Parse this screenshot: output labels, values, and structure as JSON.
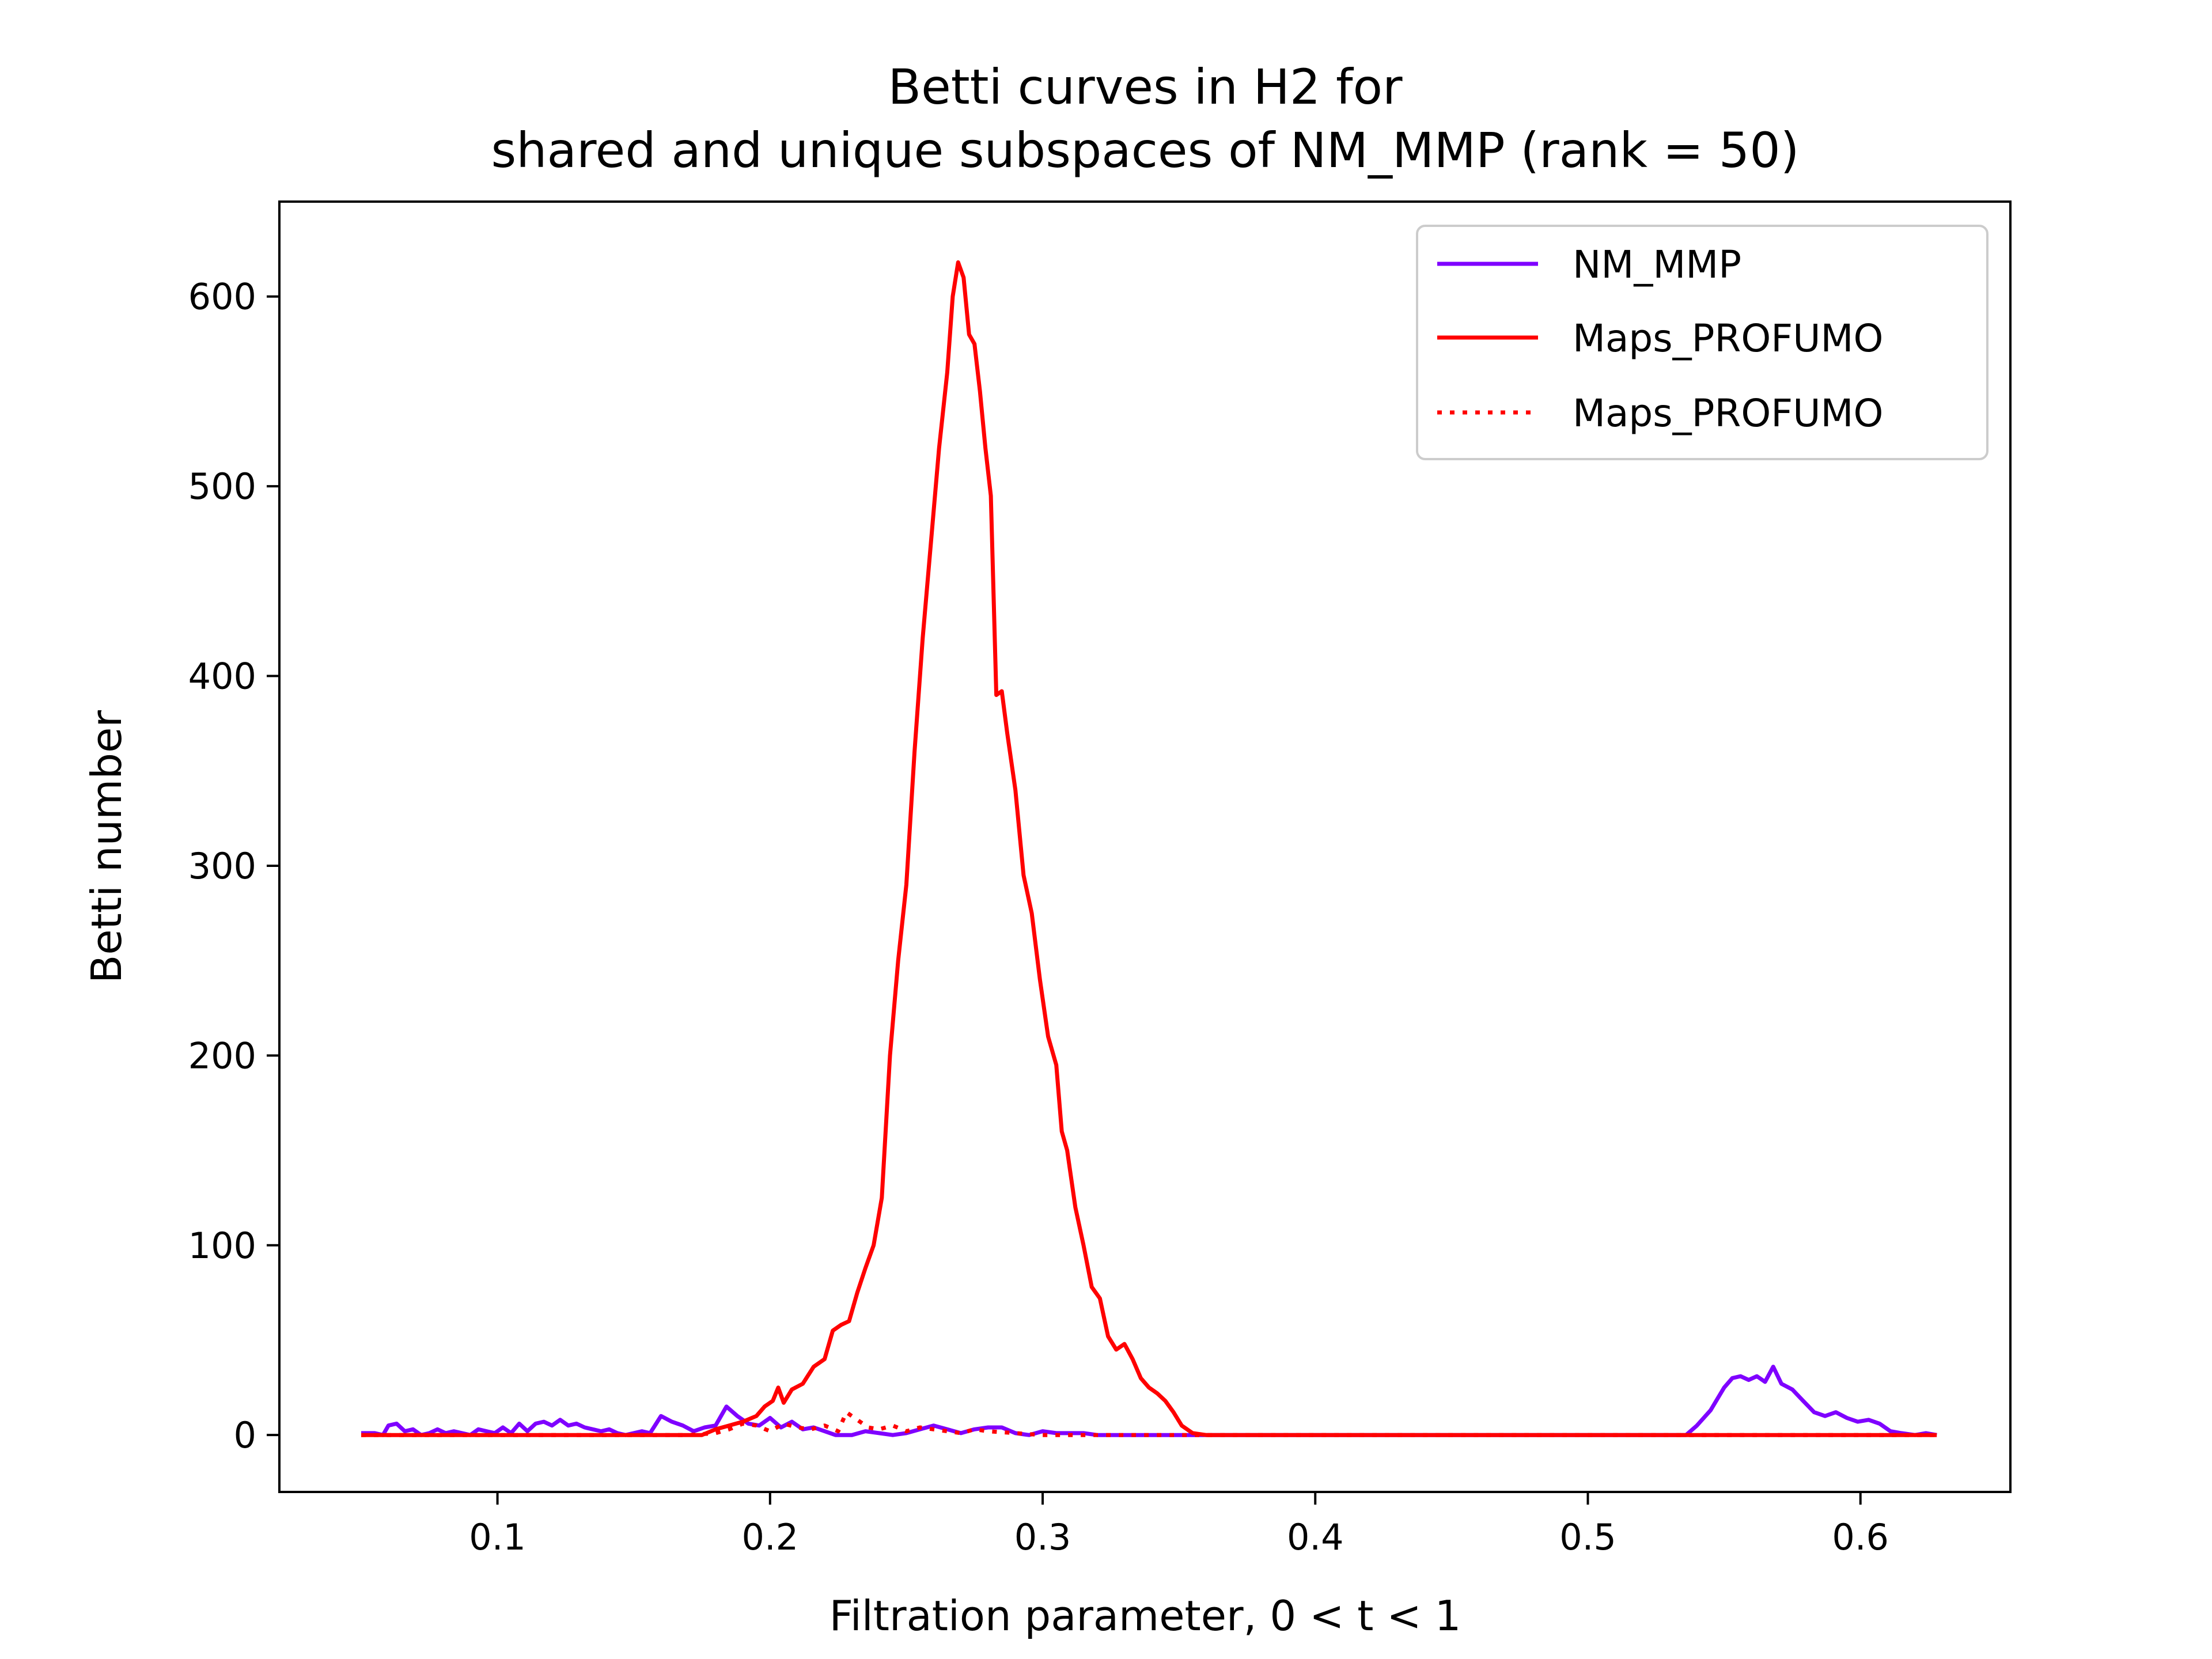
{
  "chart_data": {
    "type": "line",
    "title": [
      "Betti curves in H2 for",
      "shared and unique subspaces of NM_MMP (rank = 50)"
    ],
    "xlabel": "Filtration parameter, 0 < t < 1",
    "ylabel": "Betti number",
    "xlim": [
      0.02,
      0.655
    ],
    "ylim": [
      -30,
      650
    ],
    "xticks": [
      0.1,
      0.2,
      0.3,
      0.4,
      0.5,
      0.6
    ],
    "xtick_labels": [
      "0.1",
      "0.2",
      "0.3",
      "0.4",
      "0.5",
      "0.6"
    ],
    "yticks": [
      0,
      100,
      200,
      300,
      400,
      500,
      600
    ],
    "ytick_labels": [
      "0",
      "100",
      "200",
      "300",
      "400",
      "500",
      "600"
    ],
    "grid": false,
    "legend_position": "top-right",
    "series": [
      {
        "name": "NM_MMP",
        "color": "#7f00ff",
        "style": "solid",
        "points": [
          [
            0.05,
            1
          ],
          [
            0.055,
            1
          ],
          [
            0.058,
            0
          ],
          [
            0.06,
            5
          ],
          [
            0.063,
            6
          ],
          [
            0.066,
            2
          ],
          [
            0.069,
            3
          ],
          [
            0.072,
            0
          ],
          [
            0.075,
            1
          ],
          [
            0.078,
            3
          ],
          [
            0.081,
            1
          ],
          [
            0.084,
            2
          ],
          [
            0.087,
            1
          ],
          [
            0.09,
            0
          ],
          [
            0.093,
            3
          ],
          [
            0.096,
            2
          ],
          [
            0.099,
            1
          ],
          [
            0.102,
            4
          ],
          [
            0.105,
            1
          ],
          [
            0.108,
            6
          ],
          [
            0.111,
            2
          ],
          [
            0.114,
            6
          ],
          [
            0.117,
            7
          ],
          [
            0.12,
            5
          ],
          [
            0.123,
            8
          ],
          [
            0.126,
            5
          ],
          [
            0.129,
            6
          ],
          [
            0.132,
            4
          ],
          [
            0.135,
            3
          ],
          [
            0.138,
            2
          ],
          [
            0.141,
            3
          ],
          [
            0.144,
            1
          ],
          [
            0.147,
            0
          ],
          [
            0.15,
            1
          ],
          [
            0.153,
            2
          ],
          [
            0.156,
            1
          ],
          [
            0.16,
            10
          ],
          [
            0.164,
            7
          ],
          [
            0.168,
            5
          ],
          [
            0.172,
            2
          ],
          [
            0.176,
            4
          ],
          [
            0.18,
            5
          ],
          [
            0.184,
            15
          ],
          [
            0.188,
            10
          ],
          [
            0.192,
            6
          ],
          [
            0.196,
            5
          ],
          [
            0.2,
            9
          ],
          [
            0.204,
            4
          ],
          [
            0.208,
            7
          ],
          [
            0.212,
            3
          ],
          [
            0.216,
            4
          ],
          [
            0.22,
            2
          ],
          [
            0.224,
            0
          ],
          [
            0.23,
            0
          ],
          [
            0.235,
            2
          ],
          [
            0.24,
            1
          ],
          [
            0.245,
            0
          ],
          [
            0.25,
            1
          ],
          [
            0.255,
            3
          ],
          [
            0.26,
            5
          ],
          [
            0.265,
            3
          ],
          [
            0.27,
            1
          ],
          [
            0.275,
            3
          ],
          [
            0.28,
            4
          ],
          [
            0.285,
            4
          ],
          [
            0.29,
            1
          ],
          [
            0.295,
            0
          ],
          [
            0.3,
            2
          ],
          [
            0.305,
            1
          ],
          [
            0.31,
            1
          ],
          [
            0.315,
            1
          ],
          [
            0.32,
            0
          ],
          [
            0.33,
            0
          ],
          [
            0.35,
            0
          ],
          [
            0.4,
            0
          ],
          [
            0.45,
            0
          ],
          [
            0.5,
            0
          ],
          [
            0.536,
            0
          ],
          [
            0.54,
            5
          ],
          [
            0.545,
            13
          ],
          [
            0.55,
            25
          ],
          [
            0.553,
            30
          ],
          [
            0.556,
            31
          ],
          [
            0.559,
            29
          ],
          [
            0.562,
            31
          ],
          [
            0.565,
            28
          ],
          [
            0.568,
            36
          ],
          [
            0.571,
            27
          ],
          [
            0.575,
            24
          ],
          [
            0.579,
            18
          ],
          [
            0.583,
            12
          ],
          [
            0.587,
            10
          ],
          [
            0.591,
            12
          ],
          [
            0.595,
            9
          ],
          [
            0.599,
            7
          ],
          [
            0.603,
            8
          ],
          [
            0.607,
            6
          ],
          [
            0.611,
            2
          ],
          [
            0.615,
            1
          ],
          [
            0.62,
            0
          ],
          [
            0.624,
            1
          ],
          [
            0.628,
            0
          ]
        ]
      },
      {
        "name": "Maps_PROFUMO",
        "color": "#ff0000",
        "style": "solid",
        "points": [
          [
            0.05,
            0
          ],
          [
            0.1,
            0
          ],
          [
            0.15,
            0
          ],
          [
            0.175,
            0
          ],
          [
            0.18,
            3
          ],
          [
            0.185,
            5
          ],
          [
            0.19,
            7
          ],
          [
            0.195,
            10
          ],
          [
            0.198,
            15
          ],
          [
            0.201,
            18
          ],
          [
            0.203,
            25
          ],
          [
            0.205,
            17
          ],
          [
            0.208,
            24
          ],
          [
            0.212,
            27
          ],
          [
            0.216,
            36
          ],
          [
            0.22,
            40
          ],
          [
            0.223,
            55
          ],
          [
            0.226,
            58
          ],
          [
            0.229,
            60
          ],
          [
            0.232,
            75
          ],
          [
            0.235,
            88
          ],
          [
            0.238,
            100
          ],
          [
            0.241,
            125
          ],
          [
            0.244,
            200
          ],
          [
            0.247,
            250
          ],
          [
            0.25,
            290
          ],
          [
            0.253,
            360
          ],
          [
            0.256,
            420
          ],
          [
            0.259,
            470
          ],
          [
            0.262,
            520
          ],
          [
            0.265,
            560
          ],
          [
            0.267,
            600
          ],
          [
            0.269,
            618
          ],
          [
            0.271,
            610
          ],
          [
            0.273,
            580
          ],
          [
            0.275,
            575
          ],
          [
            0.277,
            550
          ],
          [
            0.279,
            520
          ],
          [
            0.281,
            495
          ],
          [
            0.283,
            390
          ],
          [
            0.285,
            392
          ],
          [
            0.287,
            370
          ],
          [
            0.29,
            340
          ],
          [
            0.293,
            295
          ],
          [
            0.296,
            275
          ],
          [
            0.299,
            240
          ],
          [
            0.302,
            210
          ],
          [
            0.305,
            195
          ],
          [
            0.307,
            160
          ],
          [
            0.309,
            150
          ],
          [
            0.312,
            120
          ],
          [
            0.315,
            100
          ],
          [
            0.318,
            78
          ],
          [
            0.321,
            72
          ],
          [
            0.324,
            52
          ],
          [
            0.327,
            45
          ],
          [
            0.33,
            48
          ],
          [
            0.333,
            40
          ],
          [
            0.336,
            30
          ],
          [
            0.339,
            25
          ],
          [
            0.342,
            22
          ],
          [
            0.345,
            18
          ],
          [
            0.348,
            12
          ],
          [
            0.351,
            5
          ],
          [
            0.355,
            1
          ],
          [
            0.36,
            0
          ],
          [
            0.4,
            0
          ],
          [
            0.45,
            0
          ],
          [
            0.5,
            0
          ],
          [
            0.55,
            0
          ],
          [
            0.6,
            0
          ],
          [
            0.628,
            0
          ]
        ]
      },
      {
        "name": "Maps_PROFUMO",
        "color": "#ff0000",
        "style": "dotted",
        "points": [
          [
            0.05,
            0
          ],
          [
            0.1,
            0
          ],
          [
            0.15,
            0
          ],
          [
            0.17,
            0
          ],
          [
            0.18,
            1
          ],
          [
            0.185,
            3
          ],
          [
            0.19,
            6
          ],
          [
            0.195,
            5
          ],
          [
            0.2,
            2
          ],
          [
            0.205,
            6
          ],
          [
            0.21,
            4
          ],
          [
            0.215,
            3
          ],
          [
            0.22,
            5
          ],
          [
            0.225,
            2
          ],
          [
            0.228,
            12
          ],
          [
            0.232,
            8
          ],
          [
            0.236,
            4
          ],
          [
            0.24,
            3
          ],
          [
            0.245,
            5
          ],
          [
            0.25,
            2
          ],
          [
            0.255,
            4
          ],
          [
            0.26,
            3
          ],
          [
            0.265,
            2
          ],
          [
            0.27,
            1
          ],
          [
            0.275,
            3
          ],
          [
            0.28,
            2
          ],
          [
            0.29,
            1
          ],
          [
            0.3,
            0
          ],
          [
            0.35,
            0
          ],
          [
            0.4,
            0
          ],
          [
            0.5,
            0
          ],
          [
            0.6,
            0
          ],
          [
            0.628,
            0
          ]
        ]
      }
    ]
  }
}
